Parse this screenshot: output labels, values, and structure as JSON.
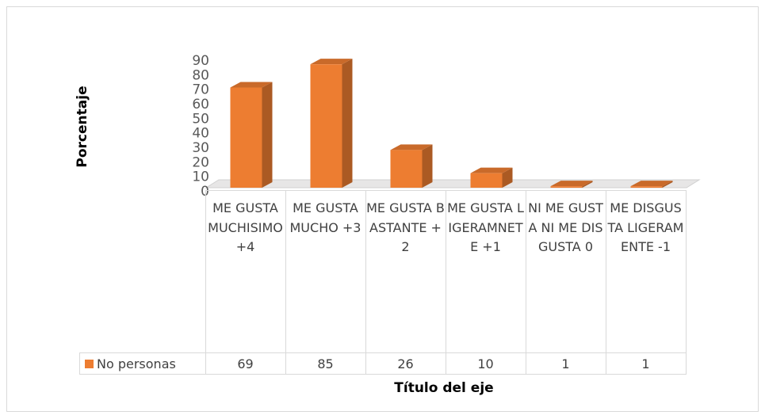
{
  "chart_data": {
    "type": "bar3d",
    "y_label": "Porcentaje",
    "x_label": "Título del eje",
    "categories": [
      "ME GUSTA MUCHISIMO +4",
      "ME GUSTA MUCHO +3",
      "ME GUSTA BASTANTE +2",
      "ME GUSTA LIGERAMNETE +1",
      "NI ME GUSTA NI ME DISGUSTA 0",
      "ME DISGUSTA LIGERAMENTE -1"
    ],
    "series": [
      {
        "name": "No personas",
        "color": "#ed7d31",
        "values": [
          69,
          85,
          26,
          10,
          1,
          1
        ]
      }
    ],
    "ylim": [
      0,
      90
    ],
    "yticks": [
      0,
      10,
      20,
      30,
      40,
      50,
      60,
      70,
      80,
      90
    ],
    "data_table": true
  }
}
